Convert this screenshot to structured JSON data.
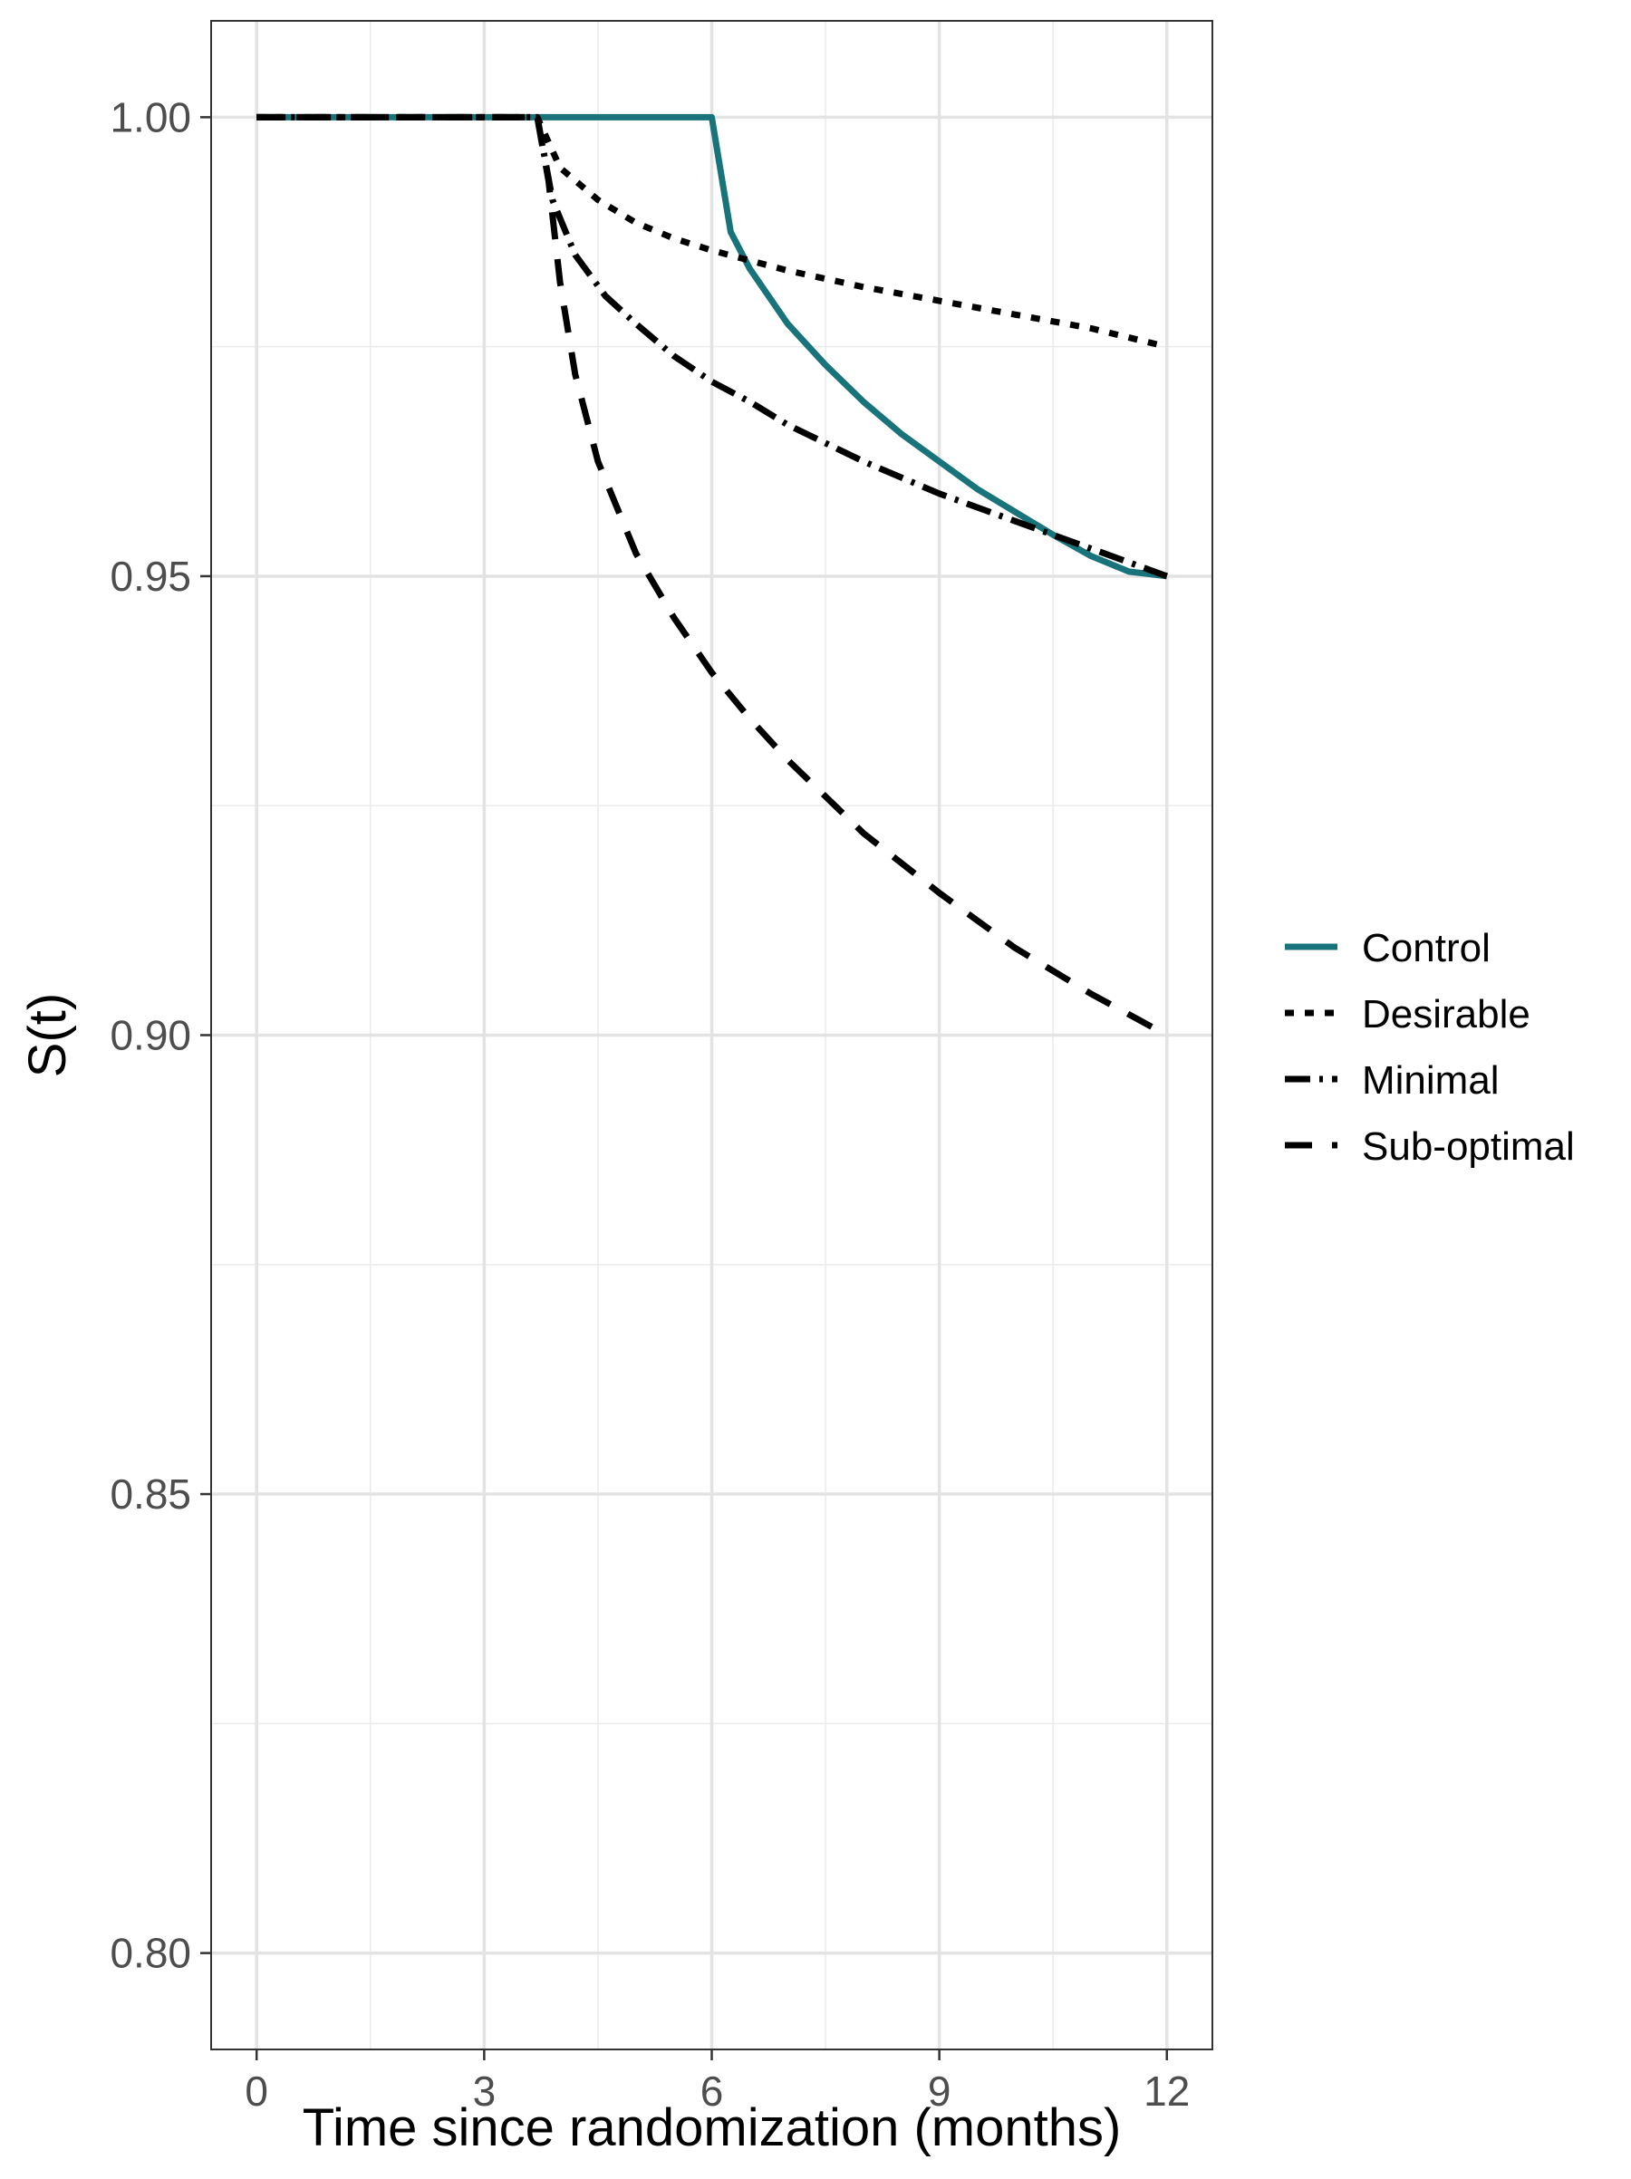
{
  "chart_data": {
    "type": "line",
    "title": "",
    "xlabel": "Time since randomization (months)",
    "ylabel": "S(t)",
    "xlim": [
      -0.6,
      12.6
    ],
    "ylim": [
      0.7895,
      1.0105
    ],
    "x_ticks": [
      0,
      3,
      6,
      9,
      12
    ],
    "x_tick_labels": [
      "0",
      "3",
      "6",
      "9",
      "12"
    ],
    "y_ticks": [
      0.8,
      0.85,
      0.9,
      0.95,
      1.0
    ],
    "y_tick_labels": [
      "0.80",
      "0.85",
      "0.90",
      "0.95",
      "1.00"
    ],
    "grid": true,
    "legend_position": "right",
    "series": [
      {
        "name": "Control",
        "color": "#19737b",
        "line_style": "solid",
        "x": [
          0,
          3,
          6,
          6.25,
          6.5,
          7,
          7.5,
          8,
          8.5,
          9,
          9.5,
          10,
          10.5,
          11,
          11.5,
          12
        ],
        "y": [
          1.0,
          1.0,
          1.0,
          0.9875,
          0.9835,
          0.9775,
          0.973,
          0.969,
          0.9655,
          0.9625,
          0.9595,
          0.957,
          0.9545,
          0.9522,
          0.9505,
          0.95
        ]
      },
      {
        "name": "Desirable",
        "color": "#000000",
        "line_style": "dotted",
        "x": [
          0,
          3,
          3.7,
          4.0,
          4.5,
          5,
          5.5,
          6,
          7,
          8,
          9,
          10,
          11,
          12
        ],
        "y": [
          1.0,
          1.0,
          1.0,
          0.9945,
          0.991,
          0.9885,
          0.9868,
          0.9855,
          0.9833,
          0.9815,
          0.98,
          0.9785,
          0.977,
          0.975
        ]
      },
      {
        "name": "Minimal",
        "color": "#000000",
        "line_style": "longdash",
        "x": [
          0,
          3,
          3.7,
          3.9,
          4.2,
          4.6,
          5,
          5.5,
          6,
          6.5,
          7,
          8,
          9,
          10,
          11,
          12
        ],
        "y": [
          1.0,
          1.0,
          1.0,
          0.991,
          0.985,
          0.9805,
          0.9775,
          0.974,
          0.9712,
          0.969,
          0.9665,
          0.9625,
          0.959,
          0.956,
          0.953,
          0.95
        ]
      },
      {
        "name": "Sub-optimal",
        "color": "#000000",
        "line_style": "dashed",
        "x": [
          0,
          3,
          3.7,
          3.85,
          4.0,
          4.2,
          4.5,
          5,
          5.5,
          6,
          6.5,
          7,
          8,
          9,
          10,
          11,
          12
        ],
        "y": [
          1.0,
          1.0,
          1.0,
          0.993,
          0.982,
          0.972,
          0.9625,
          0.9525,
          0.9455,
          0.9395,
          0.9345,
          0.93,
          0.922,
          0.9155,
          0.9095,
          0.9045,
          0.9
        ]
      }
    ]
  }
}
